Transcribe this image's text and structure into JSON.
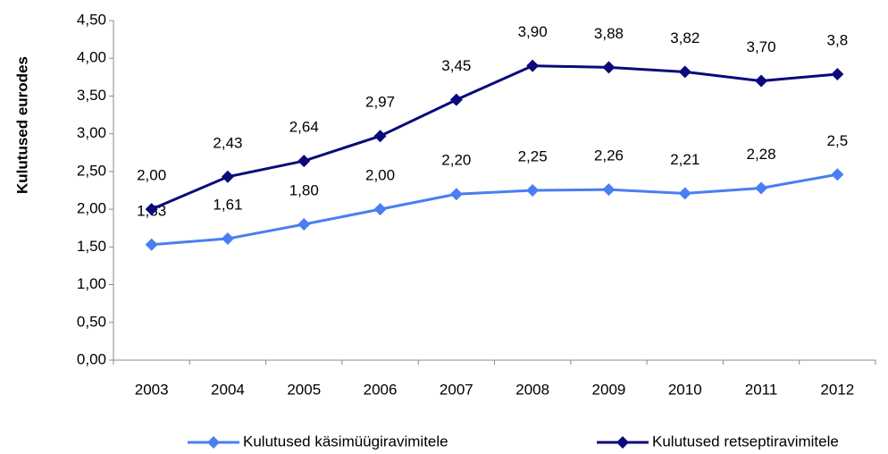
{
  "chart_data": {
    "type": "line",
    "y_label": "Kulutused eurodes",
    "categories": [
      "2003",
      "2004",
      "2005",
      "2006",
      "2007",
      "2008",
      "2009",
      "2010",
      "2011",
      "2012"
    ],
    "series": [
      {
        "name": "Kulutused käsimüügiravimitele",
        "color": "#4a7ef2",
        "values": [
          1.53,
          1.61,
          1.8,
          2.0,
          2.2,
          2.25,
          2.26,
          2.21,
          2.28,
          2.46
        ],
        "value_labels": [
          "1,53",
          "1,61",
          "1,80",
          "2,00",
          "2,20",
          "2,25",
          "2,26",
          "2,21",
          "2,28",
          "2,5"
        ]
      },
      {
        "name": "Kulutused retseptiravimitele",
        "color": "#0a0a7a",
        "values": [
          2.0,
          2.43,
          2.64,
          2.97,
          3.45,
          3.9,
          3.88,
          3.82,
          3.7,
          3.79
        ],
        "value_labels": [
          "2,00",
          "2,43",
          "2,64",
          "2,97",
          "3,45",
          "3,90",
          "3,88",
          "3,82",
          "3,70",
          "3,8"
        ]
      }
    ],
    "ylim": [
      0,
      4.5
    ],
    "yticks": [
      {
        "value": 0,
        "label": "0,00"
      },
      {
        "value": 0.5,
        "label": "0,50"
      },
      {
        "value": 1,
        "label": "1,00"
      },
      {
        "value": 1.5,
        "label": "1,50"
      },
      {
        "value": 2,
        "label": "2,00"
      },
      {
        "value": 2.5,
        "label": "2,50"
      },
      {
        "value": 3,
        "label": "3,00"
      },
      {
        "value": 3.5,
        "label": "3,50"
      },
      {
        "value": 4,
        "label": "4,00"
      },
      {
        "value": 4.5,
        "label": "4,50"
      }
    ],
    "grid": false,
    "legend": "bottom"
  }
}
